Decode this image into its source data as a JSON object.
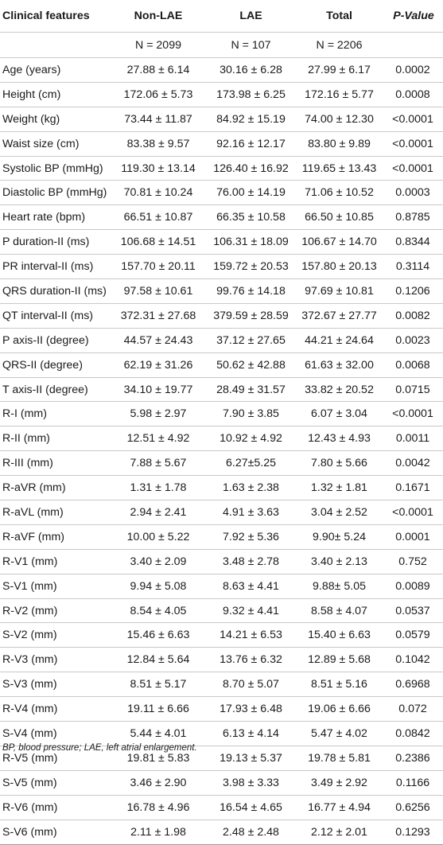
{
  "table": {
    "headers": [
      "Clinical features",
      "Non-LAE",
      "LAE",
      "Total",
      "P-Value"
    ],
    "n_row": [
      "",
      "N = 2099",
      "N = 107",
      "N = 2206",
      ""
    ],
    "rows": [
      [
        "Age (years)",
        "27.88 ± 6.14",
        "30.16 ± 6.28",
        "27.99 ± 6.17",
        "0.0002"
      ],
      [
        "Height (cm)",
        "172.06 ± 5.73",
        "173.98 ± 6.25",
        "172.16 ± 5.77",
        "0.0008"
      ],
      [
        "Weight (kg)",
        "73.44 ± 11.87",
        "84.92 ± 15.19",
        "74.00 ± 12.30",
        "<0.0001"
      ],
      [
        "Waist size (cm)",
        "83.38 ± 9.57",
        "92.16 ± 12.17",
        "83.80 ± 9.89",
        "<0.0001"
      ],
      [
        "Systolic BP (mmHg)",
        "119.30 ± 13.14",
        "126.40 ± 16.92",
        "119.65 ± 13.43",
        "<0.0001"
      ],
      [
        "Diastolic BP (mmHg)",
        "70.81 ± 10.24",
        "76.00 ± 14.19",
        "71.06 ± 10.52",
        "0.0003"
      ],
      [
        "Heart rate (bpm)",
        "66.51 ± 10.87",
        "66.35 ± 10.58",
        "66.50 ± 10.85",
        "0.8785"
      ],
      [
        "P duration-II (ms)",
        "106.68 ± 14.51",
        "106.31 ± 18.09",
        "106.67 ± 14.70",
        "0.8344"
      ],
      [
        "PR interval-II (ms)",
        "157.70 ± 20.11",
        "159.72 ± 20.53",
        "157.80 ± 20.13",
        "0.3114"
      ],
      [
        "QRS duration-II (ms)",
        "97.58 ± 10.61",
        "99.76 ± 14.18",
        "97.69 ± 10.81",
        "0.1206"
      ],
      [
        "QT interval-II (ms)",
        "372.31 ± 27.68",
        "379.59 ± 28.59",
        "372.67 ± 27.77",
        "0.0082"
      ],
      [
        "P axis-II (degree)",
        "44.57 ± 24.43",
        "37.12 ± 27.65",
        "44.21 ± 24.64",
        "0.0023"
      ],
      [
        "QRS-II (degree)",
        "62.19 ± 31.26",
        "50.62 ± 42.88",
        "61.63 ± 32.00",
        "0.0068"
      ],
      [
        "T axis-II (degree)",
        "34.10 ± 19.77",
        "28.49 ± 31.57",
        "33.82 ± 20.52",
        "0.0715"
      ],
      [
        "R-I (mm)",
        "5.98 ± 2.97",
        "7.90 ± 3.85",
        "6.07 ± 3.04",
        "<0.0001"
      ],
      [
        "R-II (mm)",
        "12.51 ± 4.92",
        "10.92 ± 4.92",
        "12.43 ± 4.93",
        "0.0011"
      ],
      [
        "R-III (mm)",
        "7.88 ± 5.67",
        "6.27±5.25",
        "7.80 ± 5.66",
        "0.0042"
      ],
      [
        "R-aVR (mm)",
        "1.31 ± 1.78",
        "1.63 ± 2.38",
        "1.32 ± 1.81",
        "0.1671"
      ],
      [
        "R-aVL (mm)",
        "2.94 ± 2.41",
        "4.91 ± 3.63",
        "3.04 ± 2.52",
        "<0.0001"
      ],
      [
        "R-aVF (mm)",
        "10.00 ± 5.22",
        "7.92 ± 5.36",
        "9.90± 5.24",
        "0.0001"
      ],
      [
        "R-V1 (mm)",
        "3.40 ± 2.09",
        "3.48 ± 2.78",
        "3.40 ± 2.13",
        "0.752"
      ],
      [
        "S-V1 (mm)",
        "9.94 ± 5.08",
        "8.63 ± 4.41",
        "9.88± 5.05",
        "0.0089"
      ],
      [
        "R-V2 (mm)",
        "8.54 ± 4.05",
        "9.32 ± 4.41",
        "8.58 ± 4.07",
        "0.0537"
      ],
      [
        "S-V2 (mm)",
        "15.46 ± 6.63",
        "14.21 ± 6.53",
        "15.40 ± 6.63",
        "0.0579"
      ],
      [
        "R-V3 (mm)",
        "12.84 ± 5.64",
        "13.76 ± 6.32",
        "12.89 ± 5.68",
        "0.1042"
      ],
      [
        "S-V3 (mm)",
        "8.51 ± 5.17",
        "8.70 ± 5.07",
        "8.51 ± 5.16",
        "0.6968"
      ],
      [
        "R-V4 (mm)",
        "19.11 ± 6.66",
        "17.93 ± 6.48",
        "19.06 ± 6.66",
        "0.072"
      ],
      [
        "S-V4 (mm)",
        "5.44 ± 4.01",
        "6.13 ± 4.14",
        "5.47 ± 4.02",
        "0.0842"
      ],
      [
        "R-V5 (mm)",
        "19.81 ± 5.83",
        "19.13 ± 5.37",
        "19.78 ± 5.81",
        "0.2386"
      ],
      [
        "S-V5 (mm)",
        "3.46 ± 2.90",
        "3.98 ± 3.33",
        "3.49 ± 2.92",
        "0.1166"
      ],
      [
        "R-V6 (mm)",
        "16.78 ± 4.96",
        "16.54 ± 4.65",
        "16.77 ± 4.94",
        "0.6256"
      ],
      [
        "S-V6 (mm)",
        "2.11 ± 1.98",
        "2.48 ± 2.48",
        "2.12 ± 2.01",
        "0.1293"
      ]
    ]
  },
  "footnote": "BP, blood pressure; LAE, left atrial enlargement."
}
